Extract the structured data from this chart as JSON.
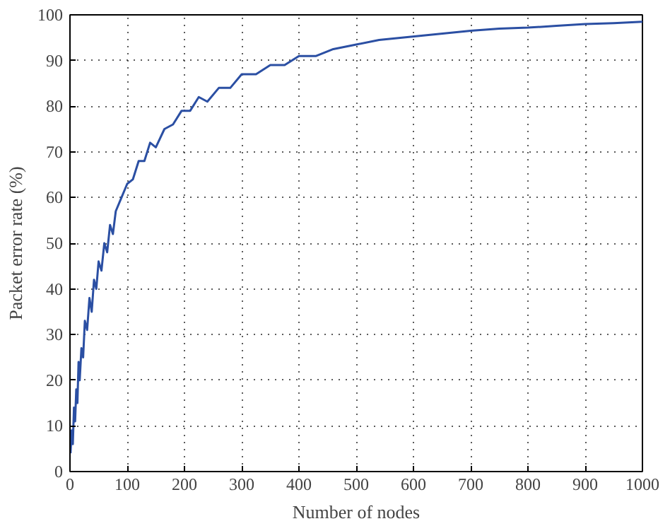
{
  "chart_data": {
    "type": "line",
    "xlabel": "Number of nodes",
    "ylabel": "Packet error rate (%)",
    "xlim": [
      0,
      1000
    ],
    "ylim": [
      0,
      100
    ],
    "xticks": [
      0,
      100,
      200,
      300,
      400,
      500,
      600,
      700,
      800,
      900,
      1000
    ],
    "yticks": [
      0,
      10,
      20,
      30,
      40,
      50,
      60,
      70,
      80,
      90,
      100
    ],
    "grid": true,
    "line_style": "solid",
    "marker": "none",
    "series": [
      {
        "color": "#2b4fa3",
        "x": [
          1,
          3,
          5,
          7,
          9,
          11,
          13,
          15,
          17,
          20,
          23,
          26,
          30,
          34,
          38,
          42,
          46,
          50,
          55,
          60,
          65,
          70,
          75,
          80,
          90,
          100,
          110,
          120,
          130,
          140,
          150,
          165,
          180,
          195,
          210,
          225,
          240,
          260,
          280,
          300,
          325,
          350,
          375,
          400,
          430,
          460,
          500,
          540,
          580,
          620,
          660,
          700,
          750,
          800,
          850,
          900,
          950,
          1000
        ],
        "values": [
          4,
          9,
          6,
          14,
          11,
          18,
          15,
          24,
          20,
          27,
          25,
          33,
          31,
          38,
          35,
          42,
          40,
          46,
          44,
          50,
          48,
          54,
          52,
          57,
          60,
          63,
          64,
          68,
          68,
          72,
          71,
          75,
          76,
          79,
          79,
          82,
          81,
          84,
          84,
          87,
          87,
          89,
          89,
          91,
          91,
          92.5,
          93.5,
          94.5,
          95,
          95.5,
          96,
          96.5,
          97,
          97.2,
          97.6,
          98,
          98.2,
          98.5
        ]
      }
    ]
  }
}
